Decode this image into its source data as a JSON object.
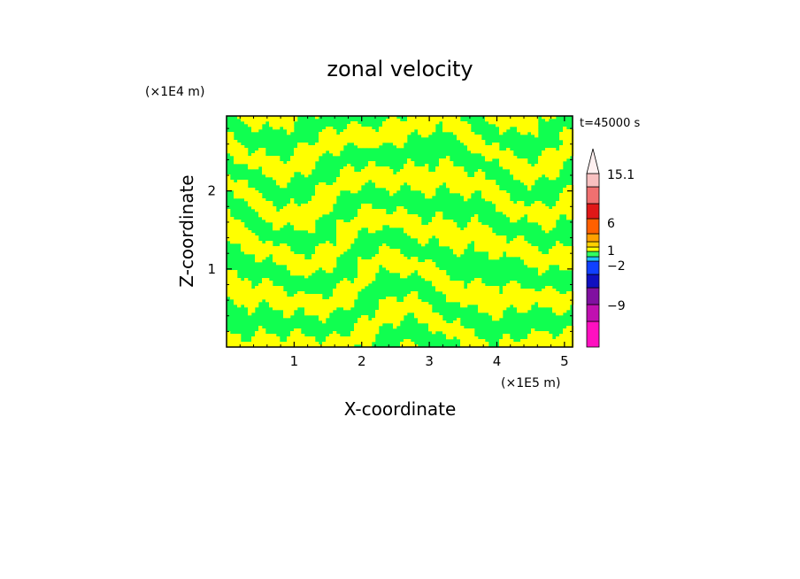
{
  "chart_data": {
    "type": "heatmap",
    "title": "zonal velocity",
    "xlabel": "X-coordinate",
    "ylabel": "Z-coordinate",
    "x_unit": "(×1E5 m)",
    "y_unit": "(×1E4 m)",
    "time_label": "t=45000 s",
    "xlim": [
      0,
      5.12
    ],
    "ylim": [
      0,
      2.96
    ],
    "x_ticks": [
      1,
      2,
      3,
      4,
      5
    ],
    "y_ticks": [
      1,
      2
    ],
    "colorbar": {
      "labels": [
        {
          "text": "15.1",
          "value": 15.1
        },
        {
          "text": "6",
          "value": 6
        },
        {
          "text": "1",
          "value": 1
        },
        {
          "text": "−2",
          "value": -2
        },
        {
          "text": "−9",
          "value": -9
        }
      ],
      "levels": [
        {
          "color": "#ff10c0"
        },
        {
          "color": "#c010b0"
        },
        {
          "color": "#8010a0"
        },
        {
          "color": "#1010c0"
        },
        {
          "color": "#1040ff"
        },
        {
          "color": "#20c0ff"
        },
        {
          "color": "#30ff60"
        },
        {
          "color": "#ffff00"
        },
        {
          "color": "#ffd000"
        },
        {
          "color": "#ffa000"
        },
        {
          "color": "#ff6000"
        },
        {
          "color": "#e01818"
        },
        {
          "color": "#f07070"
        },
        {
          "color": "#f8c0c0"
        }
      ],
      "extend_max_color": "#fff0f0"
    },
    "field_colors": {
      "positive": "#ffff00",
      "negative": "#10ff50"
    }
  }
}
